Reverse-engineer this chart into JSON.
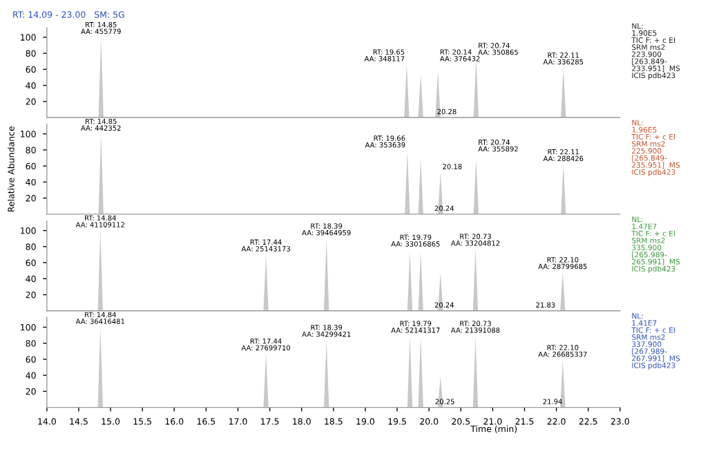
{
  "chart_data": [
    {
      "type": "area",
      "title": "RT: 14.09 - 23.00   SM: 5G",
      "xlim": [
        14.0,
        23.0
      ],
      "ylim": [
        0,
        112
      ],
      "yticks": [
        20,
        40,
        60,
        80,
        100
      ],
      "tick_labels": "y",
      "grid": false,
      "legend": false,
      "x": [
        14.0,
        14.81,
        14.85,
        14.89,
        19.61,
        19.65,
        19.69,
        19.83,
        19.87,
        19.91,
        20.1,
        20.14,
        20.18,
        20.7,
        20.74,
        20.78,
        22.07,
        22.11,
        22.15,
        23.0
      ],
      "series": [
        {
          "color": "#c8c8c8",
          "values": [
            0,
            0,
            100,
            0,
            0,
            66,
            0,
            0,
            54,
            0,
            0,
            59,
            0,
            0,
            74,
            0,
            0,
            62,
            0,
            0
          ]
        }
      ],
      "annotations": [
        {
          "text": "RT: 14.85\nAA: 455779",
          "x": 14.85,
          "y": 100
        },
        {
          "text": "RT: 19.65\nAA: 348117",
          "x": 19.65,
          "y": 66
        },
        {
          "text": "RT: 20.14\nAA: 376432",
          "x": 20.14,
          "y": 66
        },
        {
          "text": "RT: 20.74\nAA: 350865",
          "x": 20.74,
          "y": 74
        },
        {
          "text": "RT: 22.11\nAA: 336285",
          "x": 22.11,
          "y": 62
        },
        {
          "text": "20.28",
          "x": 20.28,
          "y": 0
        },
        "NL:\n1.90E5\nTIC F: + c EI\nSRM ms2\n223.900\n[263.849-\n233.951]  MS\nICIS pdb423"
      ]
    },
    {
      "type": "area",
      "ylabel": "Relative Abundance",
      "xlim": [
        14.0,
        23.0
      ],
      "ylim": [
        0,
        112
      ],
      "yticks": [
        20,
        40,
        60,
        80,
        100
      ],
      "tick_labels": "y",
      "grid": false,
      "legend": false,
      "x": [
        14.0,
        14.81,
        14.85,
        14.89,
        19.62,
        19.66,
        19.7,
        19.83,
        19.87,
        19.91,
        20.14,
        20.18,
        20.22,
        20.7,
        20.74,
        20.78,
        22.07,
        22.11,
        22.15,
        23.0
      ],
      "series": [
        {
          "color": "#c8c8c8",
          "values": [
            0,
            0,
            100,
            0,
            0,
            79,
            0,
            0,
            69,
            0,
            0,
            52,
            0,
            0,
            69,
            0,
            0,
            62,
            0,
            0
          ]
        }
      ],
      "annotations": [
        {
          "text": "RT: 14.85\nAA: 442352",
          "x": 14.85,
          "y": 100
        },
        {
          "text": "RT: 19.66\nAA: 353639",
          "x": 19.66,
          "y": 79
        },
        {
          "text": "20.18",
          "x": 20.18,
          "y": 52
        },
        {
          "text": "RT: 20.74\nAA: 355892",
          "x": 20.74,
          "y": 74
        },
        {
          "text": "RT: 22.11\nAA: 288426",
          "x": 22.11,
          "y": 62
        },
        {
          "text": "20.24",
          "x": 20.24,
          "y": 0
        },
        "NL:\n1.96E5\nTIC F: + c EI\nSRM ms2\n225.900\n[265.849-\n235.951]  MS\nICIS pdb423"
      ]
    },
    {
      "type": "area",
      "xlim": [
        14.0,
        23.0
      ],
      "ylim": [
        0,
        112
      ],
      "yticks": [
        20,
        40,
        60,
        80,
        100
      ],
      "tick_labels": "y",
      "grid": false,
      "legend": false,
      "x": [
        14.0,
        14.8,
        14.84,
        14.88,
        17.4,
        17.44,
        17.48,
        18.35,
        18.39,
        18.43,
        19.66,
        19.7,
        19.74,
        19.83,
        19.87,
        19.91,
        20.14,
        20.18,
        20.22,
        20.69,
        20.73,
        20.77,
        22.06,
        22.1,
        22.14,
        23.0
      ],
      "series": [
        {
          "color": "#c8c8c8",
          "values": [
            0,
            0,
            100,
            0,
            0,
            70,
            0,
            0,
            90,
            0,
            0,
            73,
            0,
            0,
            73,
            0,
            0,
            48,
            0,
            0,
            77,
            0,
            0,
            48,
            0,
            0
          ]
        }
      ],
      "annotations": [
        {
          "text": "RT: 14.84\nAA: 41109112",
          "x": 14.84,
          "y": 100
        },
        {
          "text": "RT: 17.44\nAA: 25143173",
          "x": 17.44,
          "y": 70
        },
        {
          "text": "RT: 18.39\nAA: 39464959",
          "x": 18.39,
          "y": 90
        },
        {
          "text": "RT: 19.79\nAA: 33016865",
          "x": 19.79,
          "y": 76
        },
        {
          "text": "RT: 20.73\nAA: 33204812",
          "x": 20.73,
          "y": 77
        },
        {
          "text": "RT: 22.10\nAA: 28799685",
          "x": 22.1,
          "y": 48
        },
        {
          "text": "20.24",
          "x": 20.24,
          "y": 0
        },
        {
          "text": "21.83",
          "x": 21.83,
          "y": 0
        },
        "NL:\n1.47E7\nTIC F: + c EI\nSRM ms2\n335.900\n[265.989-\n265.991]  MS\nICIS pdb423"
      ]
    },
    {
      "type": "area",
      "xlabel": "Time (min)",
      "xlim": [
        14.0,
        23.0
      ],
      "ylim": [
        0,
        112
      ],
      "yticks": [
        20,
        40,
        60,
        80,
        100
      ],
      "grid": false,
      "legend": false,
      "xticks": [
        {
          "value": 14,
          "label": "14.0"
        },
        14.5,
        {
          "value": 15,
          "label": "15.0"
        },
        15.5,
        {
          "value": 16,
          "label": "16.0"
        },
        16.5,
        {
          "value": 17,
          "label": "17.0"
        },
        17.5,
        {
          "value": 18,
          "label": "18.0"
        },
        18.5,
        {
          "value": 19,
          "label": "19.0"
        },
        19.5,
        {
          "value": 20,
          "label": "20.0"
        },
        20.5,
        {
          "value": 21,
          "label": "21.0"
        },
        21.5,
        {
          "value": 22,
          "label": "22.0"
        },
        22.5,
        {
          "value": 23,
          "label": "23.0"
        }
      ],
      "x": [
        14.0,
        14.8,
        14.84,
        14.88,
        17.4,
        17.44,
        17.48,
        18.35,
        18.39,
        18.43,
        19.66,
        19.7,
        19.74,
        19.83,
        19.87,
        19.91,
        20.14,
        20.18,
        20.22,
        20.69,
        20.73,
        20.77,
        22.06,
        22.1,
        22.14,
        23.0
      ],
      "series": [
        {
          "color": "#c8c8c8",
          "values": [
            0,
            0,
            100,
            0,
            0,
            67,
            0,
            0,
            84,
            0,
            0,
            89,
            0,
            0,
            89,
            0,
            0,
            39,
            0,
            0,
            89,
            0,
            0,
            59,
            0,
            0
          ]
        }
      ],
      "annotations": [
        {
          "text": "RT: 14.84\nAA: 36416481",
          "x": 14.84,
          "y": 100
        },
        {
          "text": "RT: 17.44\nAA: 27699710",
          "x": 17.44,
          "y": 67
        },
        {
          "text": "RT: 18.39\nAA: 34299421",
          "x": 18.39,
          "y": 84
        },
        {
          "text": "RT: 19.79\nAA: 52141317",
          "x": 19.79,
          "y": 89
        },
        {
          "text": "RT: 20.73\nAA: 21391088",
          "x": 20.73,
          "y": 89
        },
        {
          "text": "RT: 22.10\nAA: 26685337",
          "x": 22.1,
          "y": 59
        },
        {
          "text": "20.25",
          "x": 20.25,
          "y": 0
        },
        {
          "text": "21.94",
          "x": 21.94,
          "y": 0
        },
        "NL:\n1.41E7\nTIC F: + c EI\nSRM ms2\n337.900\n[267.989-\n267.991]  MS\nICIS pdb423"
      ]
    }
  ]
}
